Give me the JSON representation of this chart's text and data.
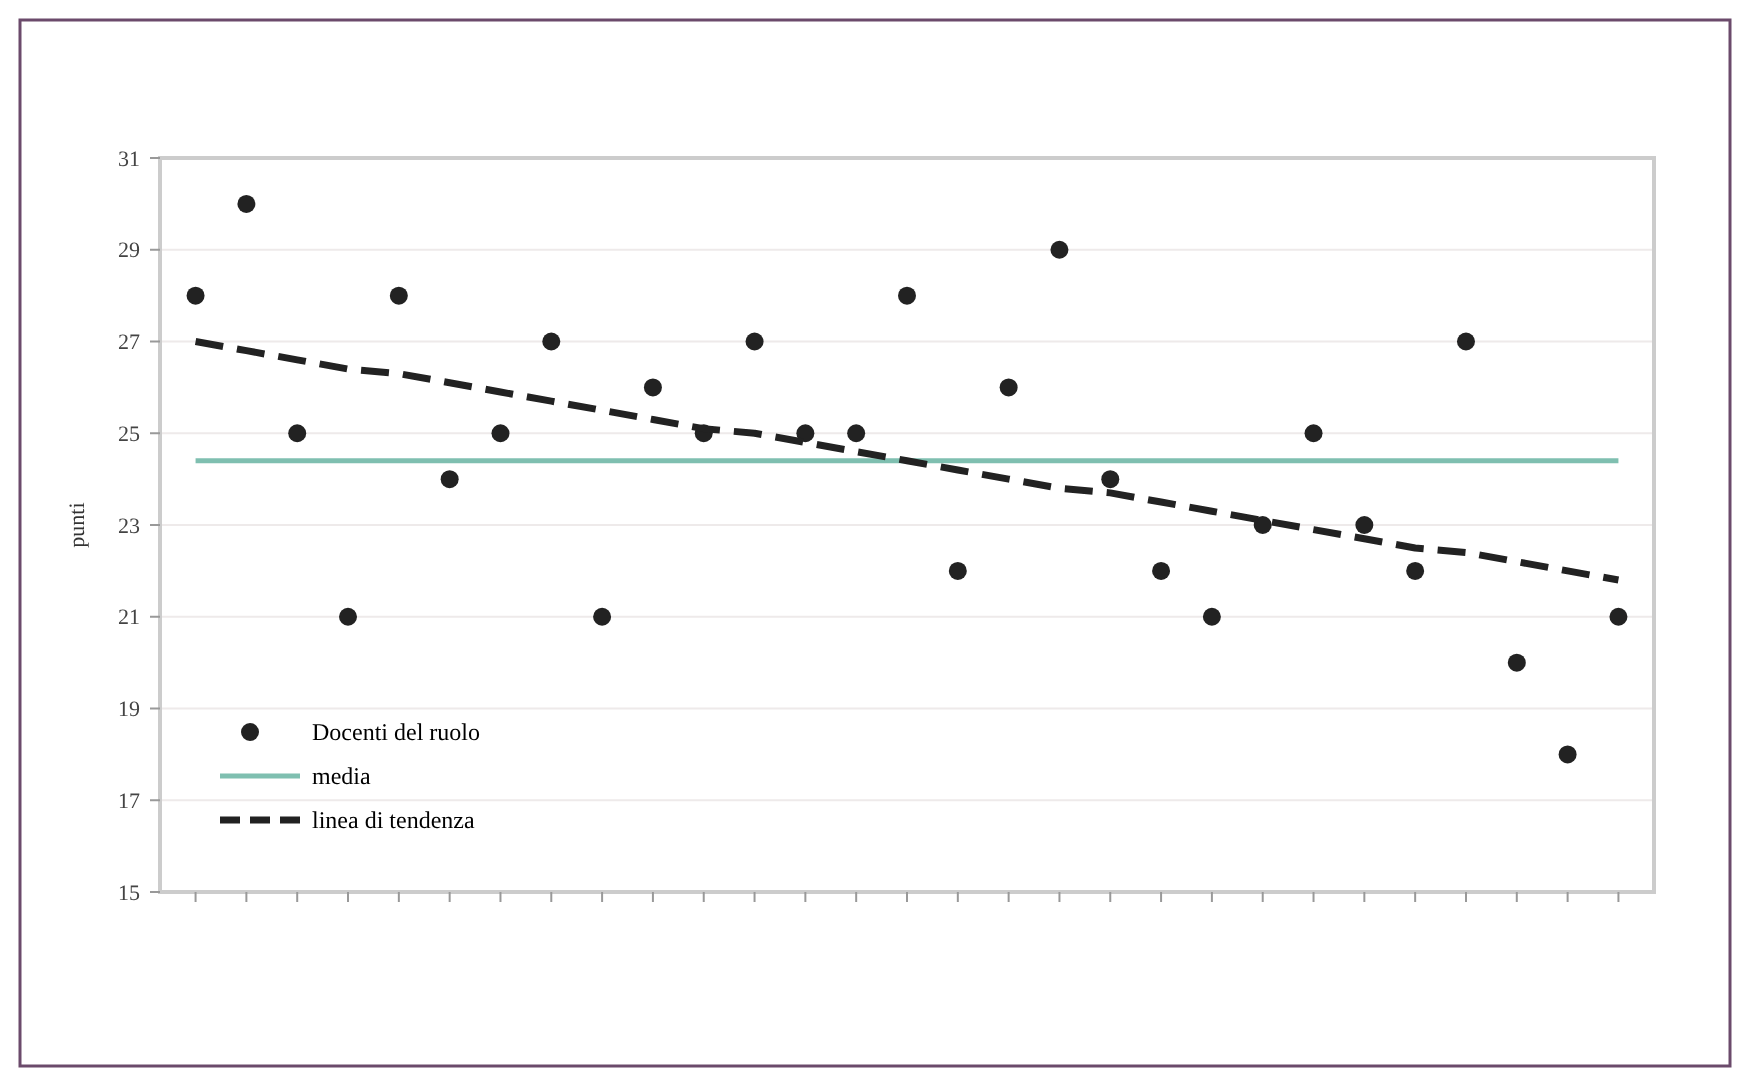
{
  "chart_data": {
    "type": "scatter",
    "ylabel": "punti",
    "categories": [
      null,
      null,
      null,
      null,
      null,
      null,
      null,
      null,
      null,
      null,
      null,
      null,
      null,
      null,
      null,
      null,
      null,
      null,
      null,
      null,
      null,
      null,
      null,
      null,
      null,
      null,
      null,
      null,
      null
    ],
    "series": [
      {
        "name": "Docenti del ruolo",
        "color": "#222222",
        "marker": "circle",
        "values": [
          28,
          30,
          25,
          21,
          28,
          24,
          25,
          27,
          21,
          26,
          25,
          27,
          25,
          25,
          28,
          22,
          26,
          29,
          24,
          22,
          21,
          23,
          25,
          23,
          22,
          27,
          20,
          18,
          21
        ]
      },
      {
        "name": "media",
        "type": "line",
        "color": "#7fbfb0",
        "line_style": "solid",
        "values": [
          24.4,
          24.4,
          24.4,
          24.4,
          24.4,
          24.4,
          24.4,
          24.4,
          24.4,
          24.4,
          24.4,
          24.4,
          24.4,
          24.4,
          24.4,
          24.4,
          24.4,
          24.4,
          24.4,
          24.4,
          24.4,
          24.4,
          24.4,
          24.4,
          24.4,
          24.4,
          24.4,
          24.4,
          24.4
        ]
      },
      {
        "name": "linea di tendenza",
        "type": "line",
        "color": "#222222",
        "line_style": "dashed",
        "values": [
          27.0,
          26.8,
          26.6,
          26.4,
          26.3,
          26.1,
          25.9,
          25.7,
          25.5,
          25.3,
          25.1,
          25.0,
          24.8,
          24.6,
          24.4,
          24.2,
          24.0,
          23.8,
          23.7,
          23.5,
          23.3,
          23.1,
          22.9,
          22.7,
          22.5,
          22.4,
          22.2,
          22.0,
          21.8
        ]
      }
    ],
    "ylim": [
      15,
      31
    ],
    "yticks": [
      15,
      17,
      19,
      21,
      23,
      25,
      27,
      29,
      31
    ],
    "grid": "y",
    "legend": "bottom left"
  }
}
